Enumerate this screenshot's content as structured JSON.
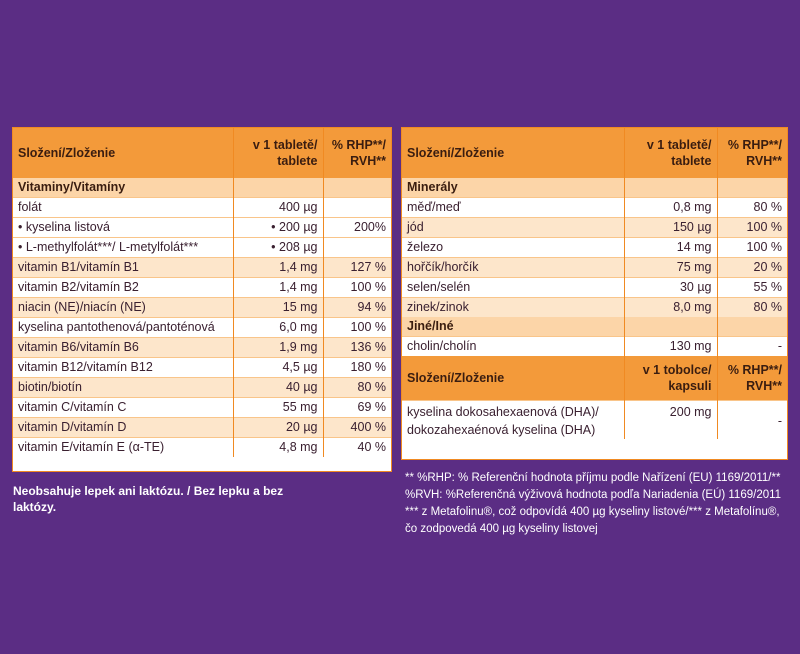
{
  "left_table": {
    "header": {
      "col1": "Složení/Zloženie",
      "col2": "v 1 tabletě/ tablete",
      "col3": "% RHP**/ RVH**"
    },
    "section": "Vitaminy/Vitamíny",
    "rows": [
      {
        "name": "folát",
        "amount": "400 µg",
        "pct": ""
      },
      {
        "name": "• kyselina listová",
        "amount": "• 200 µg",
        "pct": "200%"
      },
      {
        "name": "• L-methylfolát***/ L-metylfolát***",
        "amount": "• 208 µg",
        "pct": ""
      },
      {
        "name": "vitamin B1/vitamín B1",
        "amount": "1,4 mg",
        "pct": "127 %"
      },
      {
        "name": "vitamin B2/vitamín B2",
        "amount": "1,4 mg",
        "pct": "100 %"
      },
      {
        "name": "niacin (NE)/niacín (NE)",
        "amount": "15 mg",
        "pct": "94 %"
      },
      {
        "name": "kyselina pantothenová/pantoténová",
        "amount": "6,0 mg",
        "pct": "100 %"
      },
      {
        "name": "vitamin B6/vitamín B6",
        "amount": "1,9 mg",
        "pct": "136 %"
      },
      {
        "name": "vitamin B12/vitamín B12",
        "amount": "4,5 µg",
        "pct": "180 %"
      },
      {
        "name": "biotin/biotín",
        "amount": "40 µg",
        "pct": "80 %"
      },
      {
        "name": "vitamin C/vitamín C",
        "amount": "55 mg",
        "pct": "69 %"
      },
      {
        "name": "vitamin D/vitamín D",
        "amount": "20 µg",
        "pct": "400 %"
      },
      {
        "name": "vitamin E/vitamín E (α-TE)",
        "amount": "4,8 mg",
        "pct": "40 %"
      }
    ]
  },
  "right_table": {
    "header": {
      "col1": "Složení/Zloženie",
      "col2": "v 1 tabletě/ tablete",
      "col3": "% RHP**/ RVH**"
    },
    "section_minerals": "Minerály",
    "minerals": [
      {
        "name": "měď/meď",
        "amount": "0,8 mg",
        "pct": "80 %"
      },
      {
        "name": "jód",
        "amount": "150 µg",
        "pct": "100 %"
      },
      {
        "name": "železo",
        "amount": "14 mg",
        "pct": "100 %"
      },
      {
        "name": "hořčík/horčík",
        "amount": "75 mg",
        "pct": "20 %"
      },
      {
        "name": "selen/selén",
        "amount": "30 µg",
        "pct": "55 %"
      },
      {
        "name": "zinek/zinok",
        "amount": "8,0 mg",
        "pct": "80 %"
      }
    ],
    "section_other": "Jiné/Iné",
    "other": [
      {
        "name": "cholin/cholín",
        "amount": "130 mg",
        "pct": "-"
      }
    ],
    "header2": {
      "col1": "Složení/Zloženie",
      "col2": "v 1 tobolce/ kapsuli",
      "col3": "% RHP**/ RVH**"
    },
    "capsule": {
      "name": "kyselina dokosahexaenová (DHA)/ dokozahexaénová kyselina (DHA)",
      "amount": "200 mg",
      "pct": "-"
    }
  },
  "footnotes": {
    "left": "Neobsahuje lepek ani laktózu. / Bez lepku a bez laktózy.",
    "right_1": "** %RHP: % Referenční hodnota příjmu podle Nařízení (EU) 1169/2011/**",
    "right_2": "%RVH: %Referenčná výživová hodnota podľa Nariadenia (EÚ)  1169/2011",
    "right_3": "*** z Metafolinu®, což odpovídá 400 µg kyseliny listové/*** z Metafolínu®,",
    "right_4": "čo zodpovedá 400 µg kyseliny listovej"
  },
  "colors": {
    "background": "#5b2d84",
    "header": "#f39a3a",
    "section": "#fcd5a8",
    "alt_row": "#fde6cb"
  }
}
